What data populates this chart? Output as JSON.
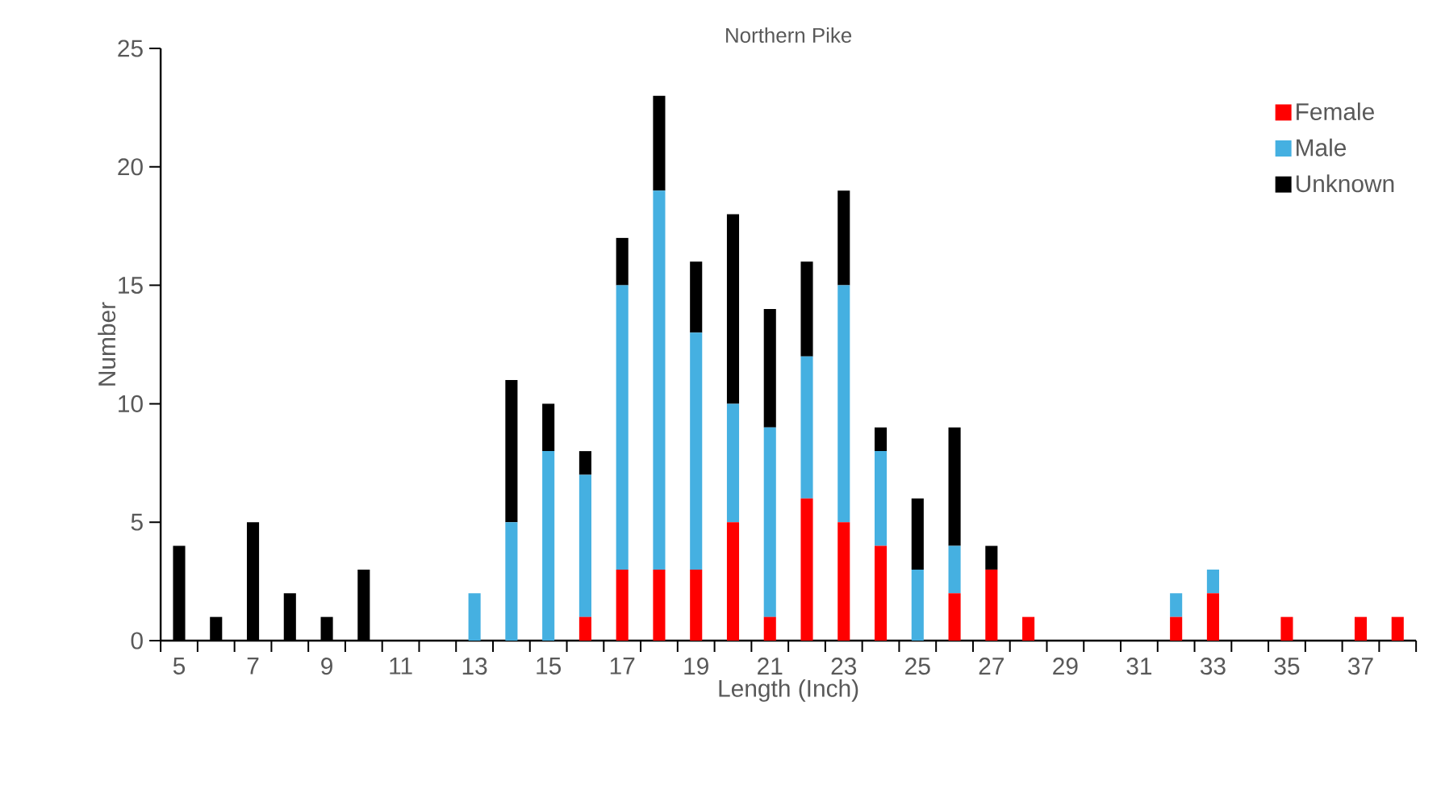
{
  "chart_data": {
    "type": "bar",
    "stacked": true,
    "title": "Northern Pike",
    "xlabel": "Length (Inch)",
    "ylabel": "Number",
    "categories": [
      "5",
      null,
      "7",
      null,
      "9",
      null,
      "11",
      null,
      "13",
      null,
      "15",
      null,
      "17",
      null,
      "19",
      null,
      "21",
      null,
      "23",
      null,
      "25",
      null,
      "27",
      null,
      "29",
      null,
      "31",
      null,
      "33",
      null,
      "35",
      null,
      "37",
      null
    ],
    "series": [
      {
        "name": "Female",
        "color": "#ff0000",
        "values": [
          0,
          0,
          0,
          0,
          0,
          0,
          0,
          0,
          0,
          0,
          0,
          1,
          3,
          3,
          3,
          5,
          1,
          6,
          5,
          4,
          0,
          2,
          3,
          1,
          0,
          0,
          0,
          1,
          2,
          0,
          1,
          0,
          1,
          1
        ]
      },
      {
        "name": "Male",
        "color": "#45b0e1",
        "values": [
          0,
          0,
          0,
          0,
          0,
          0,
          0,
          0,
          2,
          5,
          8,
          6,
          12,
          16,
          10,
          5,
          8,
          6,
          10,
          4,
          3,
          2,
          0,
          0,
          0,
          0,
          0,
          1,
          1,
          0,
          0,
          0,
          0,
          0
        ]
      },
      {
        "name": "Unknown",
        "color": "#000000",
        "values": [
          4,
          1,
          5,
          2,
          1,
          3,
          0,
          0,
          0,
          6,
          2,
          1,
          2,
          4,
          3,
          8,
          5,
          4,
          4,
          1,
          3,
          5,
          1,
          0,
          0,
          0,
          0,
          0,
          0,
          0,
          0,
          0,
          0,
          0
        ]
      }
    ],
    "ylim": [
      0,
      25
    ],
    "yticks": [
      0,
      5,
      10,
      15,
      20,
      25
    ],
    "legend": "top right",
    "grid": false
  }
}
